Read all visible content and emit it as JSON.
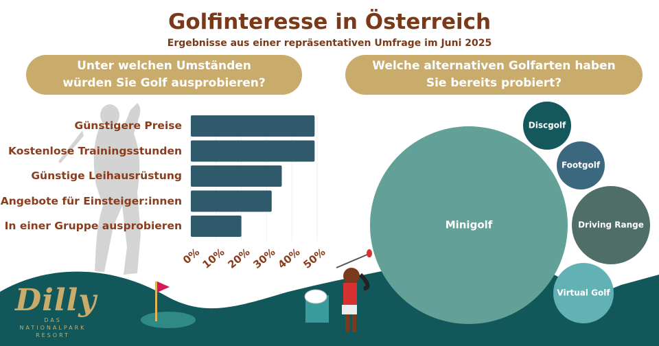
{
  "header": {
    "title": "Golfinteresse in Österreich",
    "subtitle": "Ergebnisse aus einer repräsentativen Umfrage im Juni 2025"
  },
  "left_question": "Unter welchen Umständen würden Sie Golf ausprobieren?",
  "right_question": "Welche alternativen Golfarten haben Sie bereits probiert?",
  "chart_data": [
    {
      "type": "bar",
      "orientation": "horizontal",
      "title": "Unter welchen Umständen würden Sie Golf ausprobieren?",
      "categories": [
        "Günstigere Preise",
        "Kostenlose Trainingsstunden",
        "Günstige Leihausrüstung",
        "Angebote für Einsteiger:innen",
        "In einer Gruppe ausprobieren"
      ],
      "values": [
        49,
        49,
        36,
        32,
        20
      ],
      "xlim": [
        0,
        50
      ],
      "tick_labels": [
        "0%",
        "10%",
        "20%",
        "30%",
        "40%",
        "50%"
      ],
      "grid": true,
      "color": "#2f5a6b"
    },
    {
      "type": "bubble",
      "title": "Welche alternativen Golfarten haben Sie bereits probiert?",
      "labels": [
        "Minigolf",
        "Discgolf",
        "Footgolf",
        "Driving Range",
        "Virtual Golf"
      ],
      "colors": [
        "#63a097",
        "#14585c",
        "#3b687e",
        "#4f6e67",
        "#62b1b5"
      ]
    }
  ],
  "logo": {
    "word": "Dilly",
    "tagline": "DAS NATIONALPARK RESORT"
  },
  "colors": {
    "title": "#7a3a1a",
    "banner": "#c9ab6b",
    "ground": "#12585b"
  }
}
